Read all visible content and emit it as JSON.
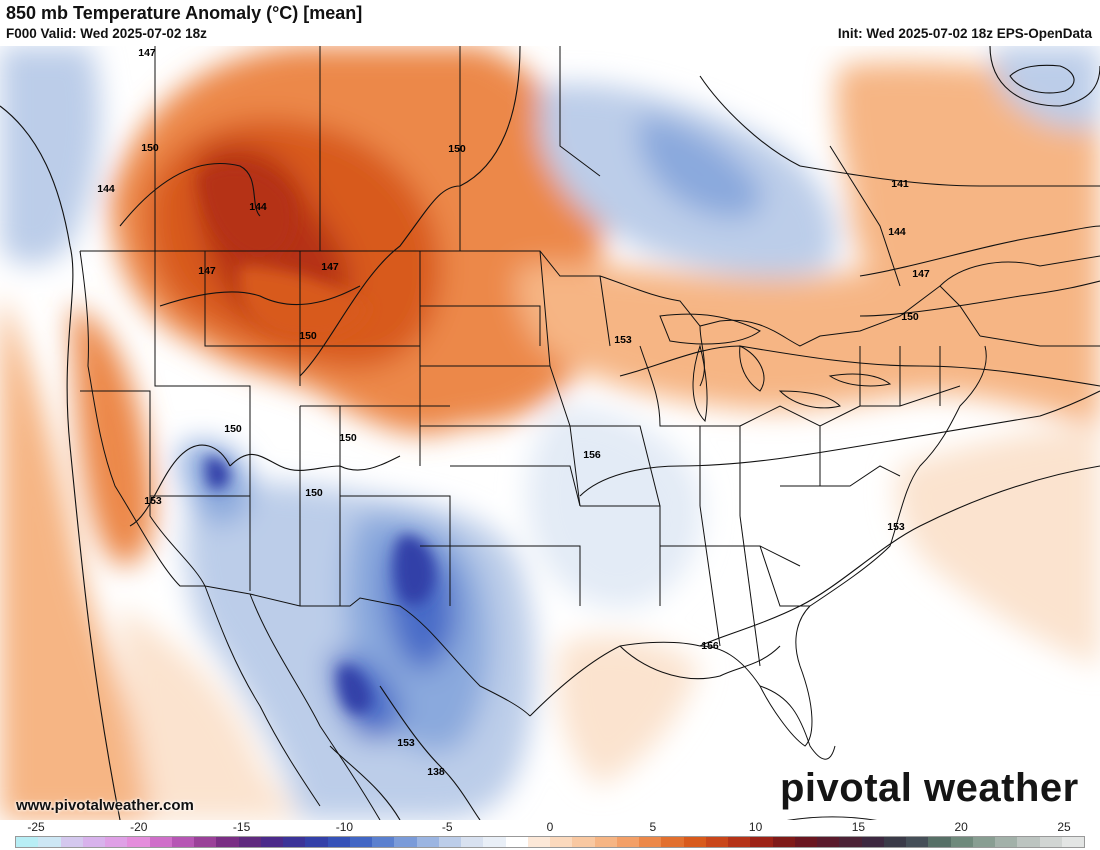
{
  "header": {
    "title": "850 mb Temperature Anomaly (°C) [mean]",
    "valid": "F000 Valid: Wed 2025-07-02 18z",
    "init": "Init: Wed 2025-07-02 18z EPS-OpenData"
  },
  "footer": {
    "website": "www.pivotalweather.com",
    "logo": "pivotal weather"
  },
  "colorbar": {
    "tick_labels": [
      "-25",
      "-20",
      "-15",
      "-10",
      "-5",
      "0",
      "5",
      "10",
      "15",
      "20",
      "25"
    ],
    "colors": [
      "#b8eef5",
      "#cde7f4",
      "#d4c8ee",
      "#d8b2ec",
      "#dfa0e6",
      "#e48ddc",
      "#cf6fc9",
      "#b656b4",
      "#9a4199",
      "#7a2e84",
      "#5f2a7e",
      "#4b2a8a",
      "#3b3398",
      "#3340a8",
      "#3552b8",
      "#4166c4",
      "#5a80cf",
      "#7a9bd9",
      "#9bb5e2",
      "#bccde9",
      "#d8e1f0",
      "#e9eff7",
      "#ffffff",
      "#fce8d8",
      "#fbd9bd",
      "#f9c8a1",
      "#f6b584",
      "#f3a068",
      "#ec8849",
      "#e2702f",
      "#d85a1c",
      "#c9461a",
      "#b53318",
      "#9c2216",
      "#7f1a18",
      "#6a1620",
      "#5a1a2c",
      "#4c2236",
      "#3d2840",
      "#3a3a48",
      "#454f58",
      "#577067",
      "#6f8a7c",
      "#889e92",
      "#a2b1a9",
      "#bcc4c0",
      "#d1d5d3",
      "#e3e5e4"
    ]
  },
  "map": {
    "contour_labels": [
      "147",
      "144",
      "150",
      "144",
      "147",
      "147",
      "150",
      "150",
      "153",
      "150",
      "150",
      "156",
      "150",
      "153",
      "156",
      "153",
      "153",
      "138",
      "141",
      "144",
      "147",
      "150"
    ],
    "colors": {
      "warm_light": "#fbe3cf",
      "warm": "#f6b584",
      "warm_mid": "#ec8849",
      "hot": "#d85a1c",
      "very_hot": "#b53318",
      "cool_light": "#e3ebf6",
      "cool": "#bccde9",
      "cool_mid": "#8aa9dd",
      "cold": "#4a6cc8",
      "very_cold": "#3340a8",
      "boundary": "#111111",
      "contour": "#111111"
    }
  }
}
